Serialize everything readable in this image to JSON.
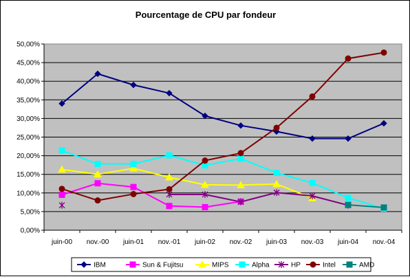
{
  "chart_data": {
    "type": "line",
    "title": "Pourcentage de CPU par fondeur",
    "xlabel": "",
    "ylabel": "",
    "categories": [
      "juin-00",
      "nov.-00",
      "juin-01",
      "nov.-01",
      "juin-02",
      "nov.-02",
      "juin-03",
      "nov.-03",
      "juin-04",
      "nov.-04"
    ],
    "ylim": [
      0,
      0.5
    ],
    "yticks": [
      "0,00%",
      "5,00%",
      "10,00%",
      "15,00%",
      "20,00%",
      "25,00%",
      "30,00%",
      "35,00%",
      "40,00%",
      "45,00%",
      "50,00%"
    ],
    "grid": true,
    "legend_position": "bottom",
    "series": [
      {
        "name": "IBM",
        "color": "#000080",
        "marker": "diamond",
        "values": [
          0.34,
          0.42,
          0.39,
          0.368,
          0.307,
          0.281,
          0.265,
          0.246,
          0.246,
          0.287
        ]
      },
      {
        "name": "Sun & Fujitsu",
        "color": "#FF00FF",
        "marker": "square",
        "values": [
          0.095,
          0.126,
          0.116,
          0.065,
          0.062,
          0.077,
          null,
          null,
          null,
          null
        ]
      },
      {
        "name": "MIPS",
        "color": "#FFFF00",
        "marker": "triangle",
        "values": [
          0.163,
          0.15,
          0.166,
          0.142,
          0.122,
          0.121,
          0.124,
          0.086,
          null,
          null
        ]
      },
      {
        "name": "Alpha",
        "color": "#00FFFF",
        "marker": "square",
        "values": [
          0.214,
          0.178,
          0.178,
          0.201,
          0.174,
          0.192,
          0.154,
          0.127,
          0.087,
          0.058
        ]
      },
      {
        "name": "HP",
        "color": "#800080",
        "marker": "star",
        "values": [
          0.067,
          null,
          null,
          0.096,
          0.096,
          0.076,
          0.101,
          0.092,
          0.067,
          null
        ]
      },
      {
        "name": "Intel",
        "color": "#800000",
        "marker": "circle",
        "values": [
          0.111,
          0.08,
          0.097,
          0.11,
          0.187,
          0.207,
          0.275,
          0.359,
          0.461,
          0.477
        ]
      },
      {
        "name": "AMD",
        "color": "#008080",
        "marker": "square",
        "values": [
          null,
          null,
          null,
          null,
          null,
          null,
          null,
          null,
          0.068,
          0.061
        ]
      }
    ]
  }
}
